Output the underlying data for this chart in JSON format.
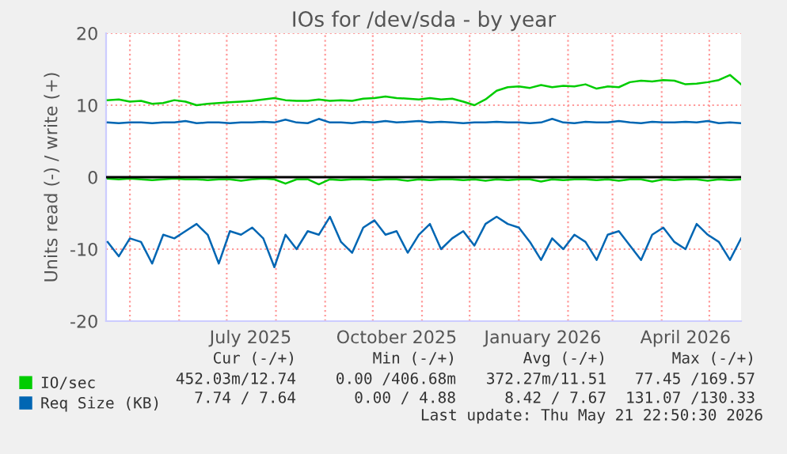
{
  "chart_data": {
    "type": "line",
    "title": "IOs for /dev/sda - by year",
    "ylabel": "Units read (-) / write (+)",
    "x": [
      "2025-04-17",
      "2025-04-24",
      "2025-05-01",
      "2025-05-08",
      "2025-05-15",
      "2025-05-22",
      "2025-05-29",
      "2025-06-05",
      "2025-06-12",
      "2025-06-19",
      "2025-06-26",
      "2025-07-03",
      "2025-07-10",
      "2025-07-17",
      "2025-07-24",
      "2025-07-31",
      "2025-08-07",
      "2025-08-14",
      "2025-08-21",
      "2025-08-28",
      "2025-09-04",
      "2025-09-11",
      "2025-09-18",
      "2025-09-25",
      "2025-10-02",
      "2025-10-09",
      "2025-10-16",
      "2025-10-23",
      "2025-10-30",
      "2025-11-06",
      "2025-11-13",
      "2025-11-20",
      "2025-11-27",
      "2025-12-04",
      "2025-12-11",
      "2025-12-18",
      "2025-12-25",
      "2026-01-01",
      "2026-01-08",
      "2026-01-15",
      "2026-01-22",
      "2026-01-29",
      "2026-02-05",
      "2026-02-12",
      "2026-02-19",
      "2026-02-26",
      "2026-03-05",
      "2026-03-12",
      "2026-03-19",
      "2026-03-26",
      "2026-04-02",
      "2026-04-09",
      "2026-04-16",
      "2026-04-23",
      "2026-04-30",
      "2026-05-07",
      "2026-05-14",
      "2026-05-21"
    ],
    "series": [
      {
        "name": "IO/sec",
        "color": "#00cc00",
        "values": [
          10.7,
          10.8,
          10.5,
          10.6,
          10.2,
          10.3,
          10.7,
          10.5,
          10.0,
          10.2,
          10.3,
          10.4,
          10.5,
          10.6,
          10.8,
          11.0,
          10.7,
          10.6,
          10.6,
          10.8,
          10.6,
          10.7,
          10.6,
          10.9,
          11.0,
          11.2,
          11.0,
          10.9,
          10.8,
          11.0,
          10.8,
          10.9,
          10.5,
          10.0,
          10.8,
          12.0,
          12.5,
          12.6,
          12.4,
          12.8,
          12.5,
          12.7,
          12.6,
          12.9,
          12.3,
          12.6,
          12.5,
          13.2,
          13.4,
          13.3,
          13.5,
          13.4,
          12.9,
          13.0,
          13.2,
          13.5,
          14.2,
          12.9
        ]
      },
      {
        "color": "#00cc00",
        "values": [
          -0.2,
          -0.3,
          -0.2,
          -0.3,
          -0.4,
          -0.3,
          -0.2,
          -0.3,
          -0.3,
          -0.4,
          -0.3,
          -0.3,
          -0.5,
          -0.3,
          -0.2,
          -0.3,
          -0.9,
          -0.3,
          -0.3,
          -1.0,
          -0.3,
          -0.4,
          -0.3,
          -0.3,
          -0.4,
          -0.3,
          -0.3,
          -0.5,
          -0.3,
          -0.4,
          -0.3,
          -0.3,
          -0.4,
          -0.3,
          -0.5,
          -0.3,
          -0.4,
          -0.3,
          -0.3,
          -0.6,
          -0.3,
          -0.4,
          -0.3,
          -0.3,
          -0.4,
          -0.3,
          -0.5,
          -0.3,
          -0.3,
          -0.6,
          -0.3,
          -0.4,
          -0.3,
          -0.3,
          -0.5,
          -0.3,
          -0.4,
          -0.3
        ]
      },
      {
        "name": "Req Size (KB)",
        "color": "#0066b3",
        "values": [
          7.6,
          7.5,
          7.6,
          7.6,
          7.5,
          7.6,
          7.6,
          7.8,
          7.5,
          7.6,
          7.6,
          7.5,
          7.6,
          7.6,
          7.7,
          7.6,
          8.0,
          7.6,
          7.5,
          8.1,
          7.6,
          7.6,
          7.5,
          7.7,
          7.6,
          7.8,
          7.6,
          7.7,
          7.8,
          7.6,
          7.7,
          7.6,
          7.5,
          7.6,
          7.6,
          7.7,
          7.6,
          7.6,
          7.5,
          7.6,
          8.1,
          7.6,
          7.5,
          7.7,
          7.6,
          7.6,
          7.8,
          7.6,
          7.5,
          7.7,
          7.6,
          7.6,
          7.7,
          7.6,
          7.8,
          7.5,
          7.6,
          7.5
        ]
      },
      {
        "color": "#0066b3",
        "values": [
          -9,
          -11,
          -8.5,
          -9,
          -12,
          -8,
          -8.5,
          -7.5,
          -6.5,
          -8,
          -12,
          -7.5,
          -8,
          -7,
          -8.5,
          -12.5,
          -8,
          -10,
          -7.5,
          -8,
          -5.5,
          -9,
          -10.5,
          -7,
          -6,
          -8,
          -7.5,
          -10.5,
          -8,
          -6.5,
          -10,
          -8.5,
          -7.5,
          -9.5,
          -6.5,
          -5.5,
          -6.5,
          -7,
          -9,
          -11.5,
          -8.5,
          -10,
          -8,
          -9,
          -11.5,
          -8,
          -7.5,
          -9.5,
          -11.5,
          -8,
          -7,
          -9,
          -10,
          -6.5,
          -8,
          -9,
          -11.5,
          -8.5
        ]
      }
    ],
    "xlim": [
      "2025-04-16",
      "2026-05-21"
    ],
    "xticks": [
      {
        "value": "2025-05-01",
        "label": null
      },
      {
        "value": "2025-06-01",
        "label": null
      },
      {
        "value": "2025-07-01",
        "label": null
      },
      {
        "value": "2025-08-01",
        "label": null
      },
      {
        "value": "2025-09-01",
        "label": null
      },
      {
        "value": "2025-10-01",
        "label": null
      },
      {
        "value": "2025-11-01",
        "label": null
      },
      {
        "value": "2025-12-01",
        "label": null
      },
      {
        "value": "2026-01-01",
        "label": null
      },
      {
        "value": "2026-02-01",
        "label": null
      },
      {
        "value": "2026-03-01",
        "label": null
      },
      {
        "value": "2026-04-01",
        "label": null
      },
      {
        "value": "2026-05-01",
        "label": null
      },
      {
        "value": "2025-07-16",
        "label": "July 2025"
      },
      {
        "value": "2025-10-16",
        "label": "October 2025"
      },
      {
        "value": "2026-01-16",
        "label": "January 2026"
      },
      {
        "value": "2026-04-16",
        "label": "April 2026"
      }
    ],
    "ylim": [
      -20,
      20
    ],
    "yticks": [
      -20,
      -10,
      0,
      10,
      20
    ],
    "ref_lines": [
      {
        "axis": "y",
        "value": 0,
        "color": "#000000"
      }
    ],
    "grid": true,
    "legend": "bottom",
    "marker": "none",
    "line_style": "solid",
    "annotations": [
      "Cur (-/+)",
      "Min (-/+)",
      "Avg (-/+)",
      "Max (-/+)",
      "452.03m/12.74",
      "0.00 /406.68m",
      "372.27m/11.51",
      "77.45 /169.57",
      "7.74 / 7.64",
      "0.00 / 4.88",
      "8.42 / 7.67",
      "131.07 /130.33",
      "Last update: Thu May 21 22:50:30 2026"
    ]
  }
}
